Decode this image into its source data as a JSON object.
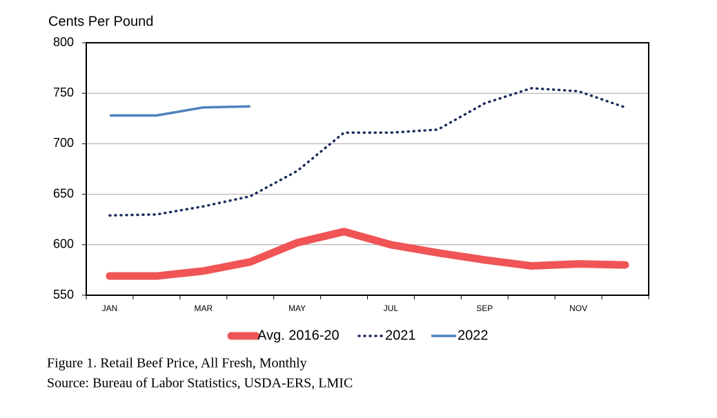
{
  "chart_data": {
    "type": "line",
    "y_axis_label": "Cents Per Pound",
    "categories": [
      "JAN",
      null,
      "MAR",
      null,
      "MAY",
      null,
      "JUL",
      null,
      "SEP",
      null,
      "NOV",
      null
    ],
    "series": [
      {
        "name": "Avg. 2016-20",
        "color": "#f05454",
        "linestyle": "thick",
        "values": [
          569,
          569,
          574,
          583,
          602,
          613,
          600,
          592,
          585,
          579,
          581,
          580
        ]
      },
      {
        "name": "2021",
        "color": "#1a2a5e",
        "linestyle": "dotted",
        "values": [
          629,
          630,
          638,
          648,
          673,
          711,
          711,
          714,
          740,
          755,
          752,
          736
        ]
      },
      {
        "name": "2022",
        "color": "#4f81bd",
        "linestyle": "solid",
        "values": [
          728,
          728,
          736,
          737,
          null,
          null,
          null,
          null,
          null,
          null,
          null,
          null
        ]
      }
    ],
    "ylim": [
      550,
      800
    ],
    "yticks": [
      550,
      600,
      650,
      700,
      750,
      800
    ],
    "grid": true,
    "legend": "bottom",
    "caption": "Figure 1. Retail Beef Price, All Fresh, Monthly",
    "source": "Source: Bureau of Labor Statistics, USDA-ERS, LMIC"
  }
}
